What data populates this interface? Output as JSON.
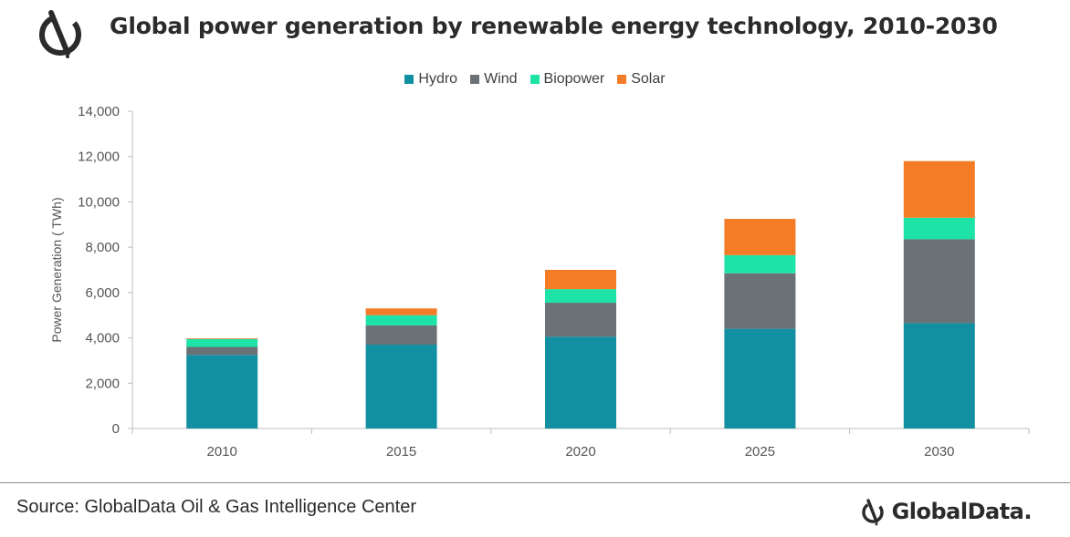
{
  "header": {
    "title": "Global power generation by renewable energy technology, 2010-2030",
    "logo_icon": "globaldata-logo-icon"
  },
  "footer": {
    "source": "Source: GlobalData Oil & Gas Intelligence Center",
    "brand": "GlobalData."
  },
  "colors": {
    "hydro": "#128fa0",
    "wind": "#6a7278",
    "biopower": "#1ee3a6",
    "solar": "#f47c26",
    "grid": "#d9d9d9",
    "axis": "#bfbfbf"
  },
  "chart_data": {
    "type": "bar",
    "stacked": true,
    "title": "Global power generation by renewable energy technology, 2010-2030",
    "xlabel": "",
    "ylabel": "Power Generation ( TWh)",
    "ylim": [
      0,
      14000
    ],
    "yticks": [
      0,
      2000,
      4000,
      6000,
      8000,
      10000,
      12000,
      14000
    ],
    "ytick_labels": [
      "0",
      "2,000",
      "4,000",
      "6,000",
      "8,000",
      "10,000",
      "12,000",
      "14,000"
    ],
    "categories": [
      "2010",
      "2015",
      "2020",
      "2025",
      "2030"
    ],
    "legend_position": "top",
    "grid": false,
    "series": [
      {
        "name": "Hydro",
        "color": "#128fa0",
        "values": [
          3250,
          3700,
          4050,
          4400,
          4650
        ]
      },
      {
        "name": "Wind",
        "color": "#6a7278",
        "values": [
          350,
          850,
          1500,
          2450,
          3700
        ]
      },
      {
        "name": "Biopower",
        "color": "#1ee3a6",
        "values": [
          350,
          450,
          600,
          800,
          950
        ]
      },
      {
        "name": "Solar",
        "color": "#f47c26",
        "values": [
          30,
          300,
          850,
          1600,
          2500
        ]
      }
    ]
  }
}
